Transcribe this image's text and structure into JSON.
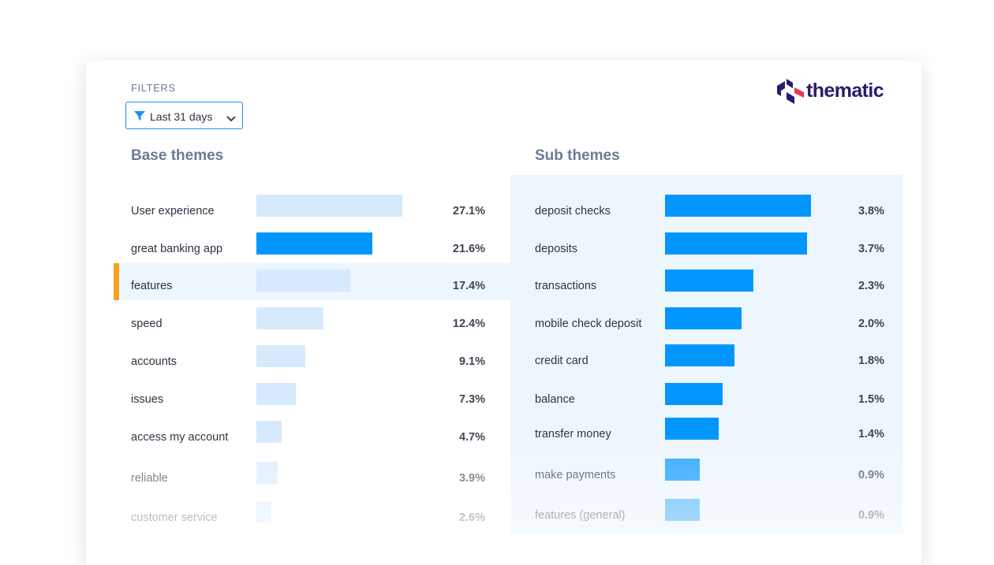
{
  "filters": {
    "label": "FILTERS",
    "selected": "Last 31 days"
  },
  "logo": {
    "text": "thematic"
  },
  "base_themes": {
    "title": "Base themes",
    "items": [
      {
        "label": "User experience",
        "pct": "27.1%",
        "value": 27.1
      },
      {
        "label": "great banking app",
        "pct": "21.6%",
        "value": 21.6
      },
      {
        "label": "features",
        "pct": "17.4%",
        "value": 17.4
      },
      {
        "label": "speed",
        "pct": "12.4%",
        "value": 12.4
      },
      {
        "label": "accounts",
        "pct": "9.1%",
        "value": 9.1
      },
      {
        "label": "issues",
        "pct": "7.3%",
        "value": 7.3
      },
      {
        "label": "access my account",
        "pct": "4.7%",
        "value": 4.7
      },
      {
        "label": "reliable",
        "pct": "3.9%",
        "value": 3.9
      },
      {
        "label": "customer service",
        "pct": "2.6%",
        "value": 2.6
      }
    ]
  },
  "sub_themes": {
    "title": "Sub themes",
    "items": [
      {
        "label": "deposit checks",
        "pct": "3.8%",
        "value": 3.8
      },
      {
        "label": "deposits",
        "pct": "3.7%",
        "value": 3.7
      },
      {
        "label": "transactions",
        "pct": "2.3%",
        "value": 2.3
      },
      {
        "label": "mobile check deposit",
        "pct": "2.0%",
        "value": 2.0
      },
      {
        "label": "credit card",
        "pct": "1.8%",
        "value": 1.8
      },
      {
        "label": "balance",
        "pct": "1.5%",
        "value": 1.5
      },
      {
        "label": "transfer money",
        "pct": "1.4%",
        "value": 1.4
      },
      {
        "label": "make payments",
        "pct": "0.9%",
        "value": 0.9
      },
      {
        "label": "features (general)",
        "pct": "0.9%",
        "value": 0.9
      }
    ]
  },
  "colors": {
    "accent_blue": "#0096ff",
    "light_blue": "#d6eafd",
    "selected_marker": "#f7a01f",
    "logo_navy": "#2d1a6e",
    "logo_red": "#e8345a"
  }
}
